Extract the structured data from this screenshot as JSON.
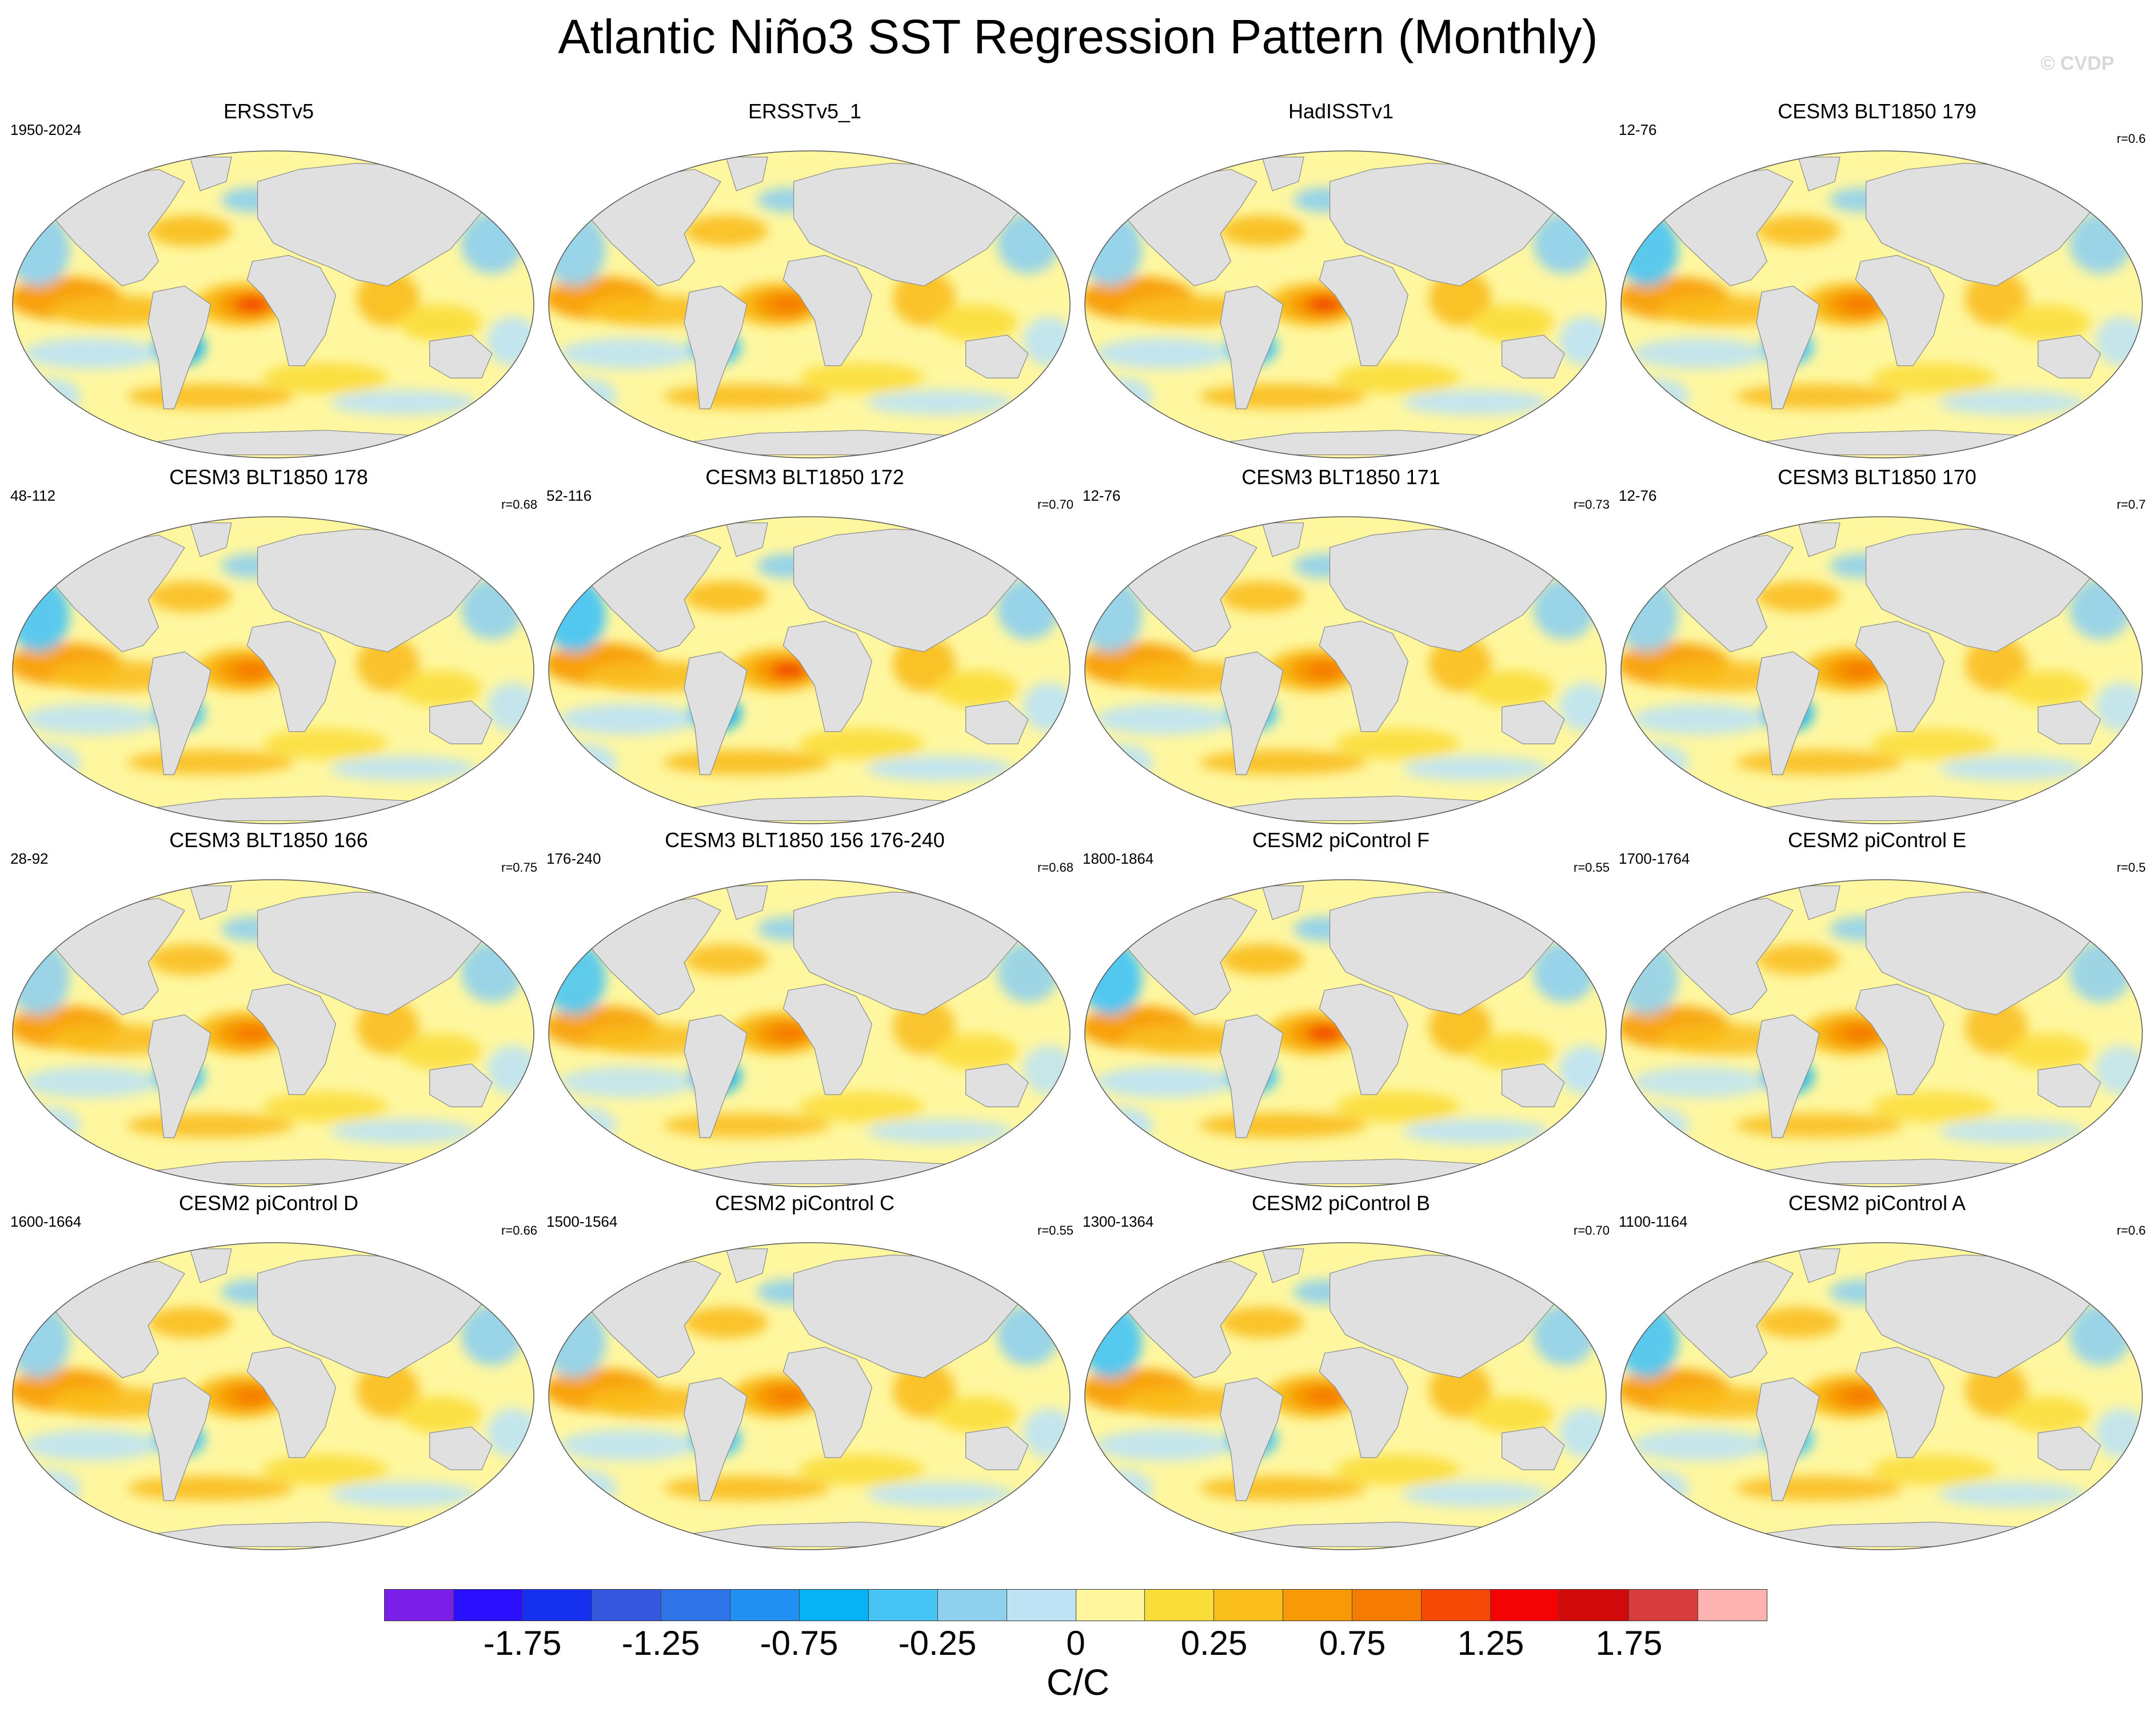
{
  "title": "Atlantic Niño3 SST Regression Pattern (Monthly)",
  "credit": "© CVDP",
  "colors": {
    "land": "#e0e0e0",
    "coast": "#8a8a8a",
    "ocean_base": "#fef7a0",
    "levels": [
      "#7a1ee8",
      "#2a10ff",
      "#1530ee",
      "#3658df",
      "#2f74e8",
      "#2190f2",
      "#08b3f5",
      "#46c4f6",
      "#8fd0ef",
      "#bde3f4",
      "#fef7a0",
      "#fbdd3a",
      "#f9bd1c",
      "#f79a05",
      "#f57b02",
      "#f34905",
      "#f40304",
      "#d00a0a",
      "#d83c3c",
      "#feb2b2"
    ]
  },
  "chart_data": {
    "type": "map-panel-grid",
    "title": "Atlantic Niño3 SST Regression Pattern (Monthly)",
    "colorbar": {
      "units": "C/C",
      "tick_labels": [
        "-1.75",
        "-1.25",
        "-0.75",
        "-0.25",
        "0",
        "0.25",
        "0.75",
        "1.25",
        "1.75"
      ],
      "num_boxes": 20
    },
    "panels": [
      {
        "title": "ERSSTv5",
        "years": "1950-2024",
        "corr": "",
        "anomaly_strength": 0.95
      },
      {
        "title": "ERSSTv5_1",
        "years": "",
        "corr": "",
        "anomaly_strength": 0.9
      },
      {
        "title": "HadISSTv1",
        "years": "",
        "corr": "",
        "anomaly_strength": 0.95
      },
      {
        "title": "CESM3 BLT1850 179",
        "years": "12-76",
        "corr": "r=0.6",
        "anomaly_strength": 0.85
      },
      {
        "title": "CESM3 BLT1850 178",
        "years": "48-112",
        "corr": "r=0.68",
        "anomaly_strength": 0.85
      },
      {
        "title": "CESM3 BLT1850 172",
        "years": "52-116",
        "corr": "r=0.70",
        "anomaly_strength": 0.95
      },
      {
        "title": "CESM3 BLT1850 171",
        "years": "12-76",
        "corr": "r=0.73",
        "anomaly_strength": 0.9
      },
      {
        "title": "CESM3 BLT1850 170",
        "years": "12-76",
        "corr": "r=0.7",
        "anomaly_strength": 0.85
      },
      {
        "title": "CESM3 BLT1850 166",
        "years": "28-92",
        "corr": "r=0.75",
        "anomaly_strength": 0.85
      },
      {
        "title": "CESM3 BLT1850 156 176-240",
        "years": "176-240",
        "corr": "r=0.68",
        "anomaly_strength": 0.8
      },
      {
        "title": "CESM2 piControl F",
        "years": "1800-1864",
        "corr": "r=0.55",
        "anomaly_strength": 0.95
      },
      {
        "title": "CESM2 piControl E",
        "years": "1700-1764",
        "corr": "r=0.5",
        "anomaly_strength": 0.8
      },
      {
        "title": "CESM2 piControl D",
        "years": "1600-1664",
        "corr": "r=0.66",
        "anomaly_strength": 0.9
      },
      {
        "title": "CESM2 piControl C",
        "years": "1500-1564",
        "corr": "r=0.55",
        "anomaly_strength": 0.9
      },
      {
        "title": "CESM2 piControl B",
        "years": "1300-1364",
        "corr": "r=0.70",
        "anomaly_strength": 0.9
      },
      {
        "title": "CESM2 piControl A",
        "years": "1100-1164",
        "corr": "r=0.6",
        "anomaly_strength": 0.85
      }
    ]
  }
}
